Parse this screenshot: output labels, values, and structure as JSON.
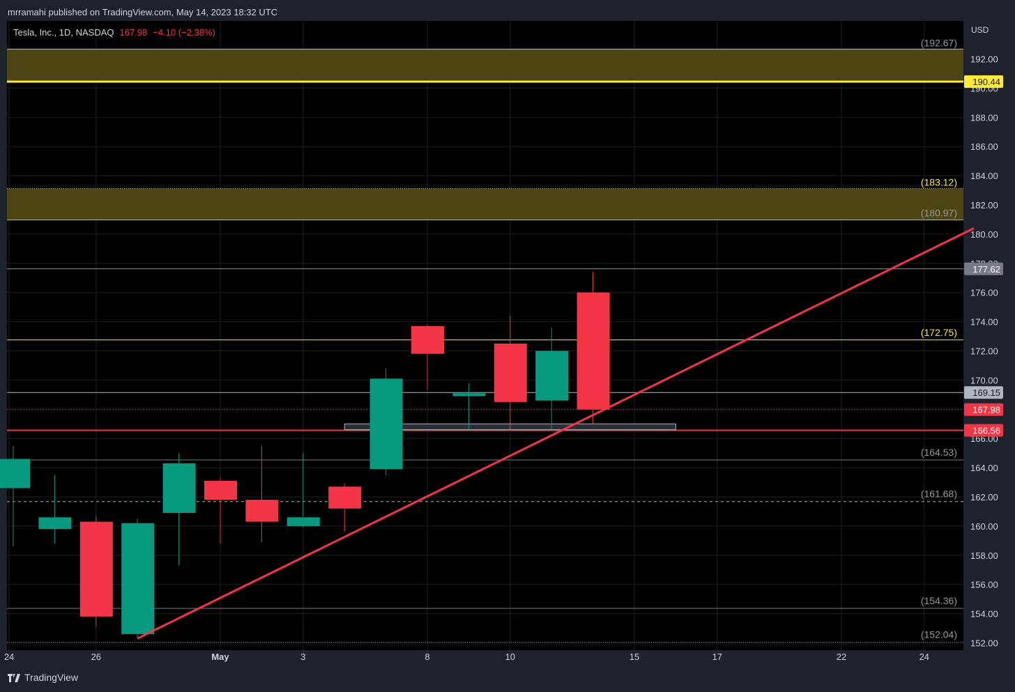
{
  "header": {
    "publisher": "mrramahi published on TradingView.com, May 14, 2023 18:32 UTC"
  },
  "legend": {
    "symbol": "Tesla, Inc., 1D, NASDAQ",
    "close": "167.98",
    "change": "−4.10 (−2.38%)"
  },
  "currency": "USD",
  "footer": {
    "logo_text": "TradingView"
  },
  "colors": {
    "up": "#089981",
    "down": "#f23645",
    "zone": "#4d4514",
    "yellow": "#ffeb3b",
    "trend": "#f23645"
  },
  "chart_data": {
    "type": "candlestick",
    "ylim": [
      151.8,
      196.0
    ],
    "y_ticks": [
      "152.00",
      "154.00",
      "156.00",
      "158.00",
      "160.00",
      "162.00",
      "164.00",
      "166.00",
      "168.00",
      "170.00",
      "172.00",
      "174.00",
      "176.00",
      "178.00",
      "180.00",
      "182.00",
      "184.00",
      "186.00",
      "188.00",
      "190.00",
      "192.00"
    ],
    "x_ticks": [
      {
        "label": "24",
        "slot": -0.1
      },
      {
        "label": "26",
        "slot": 2
      },
      {
        "label": "May",
        "slot": 5
      },
      {
        "label": "3",
        "slot": 7
      },
      {
        "label": "8",
        "slot": 10
      },
      {
        "label": "10",
        "slot": 12
      },
      {
        "label": "15",
        "slot": 15
      },
      {
        "label": "17",
        "slot": 17
      },
      {
        "label": "22",
        "slot": 20
      },
      {
        "label": "24",
        "slot": 22
      }
    ],
    "candles": [
      {
        "date": "Apr 24",
        "o": 162.6,
        "h": 165.5,
        "l": 158.6,
        "c": 164.6
      },
      {
        "date": "Apr 25",
        "o": 159.8,
        "h": 163.5,
        "l": 158.8,
        "c": 160.6
      },
      {
        "date": "Apr 26",
        "o": 160.3,
        "h": 160.7,
        "l": 153.1,
        "c": 153.8
      },
      {
        "date": "Apr 27",
        "o": 152.6,
        "h": 160.5,
        "l": 152.3,
        "c": 160.2
      },
      {
        "date": "Apr 28",
        "o": 160.9,
        "h": 165.0,
        "l": 157.3,
        "c": 164.3
      },
      {
        "date": "May 1",
        "o": 163.1,
        "h": 163.3,
        "l": 158.8,
        "c": 161.8
      },
      {
        "date": "May 2",
        "o": 161.8,
        "h": 165.5,
        "l": 158.9,
        "c": 160.3
      },
      {
        "date": "May 3",
        "o": 160.0,
        "h": 165.0,
        "l": 159.9,
        "c": 160.6
      },
      {
        "date": "May 4",
        "o": 162.7,
        "h": 162.9,
        "l": 159.6,
        "c": 161.2
      },
      {
        "date": "May 5",
        "o": 163.9,
        "h": 170.8,
        "l": 163.5,
        "c": 170.1
      },
      {
        "date": "May 8",
        "o": 173.7,
        "h": 173.8,
        "l": 169.3,
        "c": 171.8
      },
      {
        "date": "May 9",
        "o": 168.9,
        "h": 169.8,
        "l": 166.6,
        "c": 169.1
      },
      {
        "date": "May 10",
        "o": 172.5,
        "h": 174.4,
        "l": 166.6,
        "c": 168.5
      },
      {
        "date": "May 11",
        "o": 168.6,
        "h": 173.6,
        "l": 166.6,
        "c": 172.0
      },
      {
        "date": "May 12",
        "o": 176.0,
        "h": 177.4,
        "l": 167.0,
        "c": 167.98
      }
    ],
    "zones": [
      {
        "from": 190.44,
        "to": 192.67,
        "top_label": "(192.67)"
      },
      {
        "from": 180.97,
        "to": 183.12,
        "top_label": "(183.12)",
        "bottom_label": "(180.97)"
      }
    ],
    "hlines": [
      {
        "value": 177.62,
        "color": "#9598a1",
        "label": "177.62",
        "tag": true,
        "tag_bg": "#787b86"
      },
      {
        "value": 172.75,
        "color": "#ffeb3b",
        "label": "(172.75)"
      },
      {
        "value": 169.15,
        "color": "#b2b5be",
        "label": "169.15",
        "tag": true,
        "tag_bg": "#b2b5be",
        "tag_fg": "#131722"
      },
      {
        "value": 166.56,
        "color": "#f23645",
        "label": "166.56",
        "tag": true,
        "tag_bg": "#f23645"
      },
      {
        "value": 164.53,
        "color": "#787b86",
        "label": "(164.53)"
      },
      {
        "value": 161.68,
        "color": "#b2b5be",
        "label": "(161.68)",
        "dashed": true
      },
      {
        "value": 154.36,
        "color": "#787b86",
        "label": "(154.36)"
      },
      {
        "value": 152.04,
        "color": "#787b86",
        "label": "(152.04)",
        "dotted": true
      }
    ],
    "yellow_line": {
      "value": 190.44,
      "label": "190.44"
    },
    "last_price": {
      "value": 167.98,
      "label": "167.98"
    },
    "trendline": {
      "from": {
        "slot": 3,
        "value": 152.3
      },
      "to": {
        "slot": 23.2,
        "value": 180.4
      }
    },
    "rect": {
      "slot_from": 8,
      "slot_to": 16,
      "top": 167.0,
      "bottom": 166.6
    }
  }
}
